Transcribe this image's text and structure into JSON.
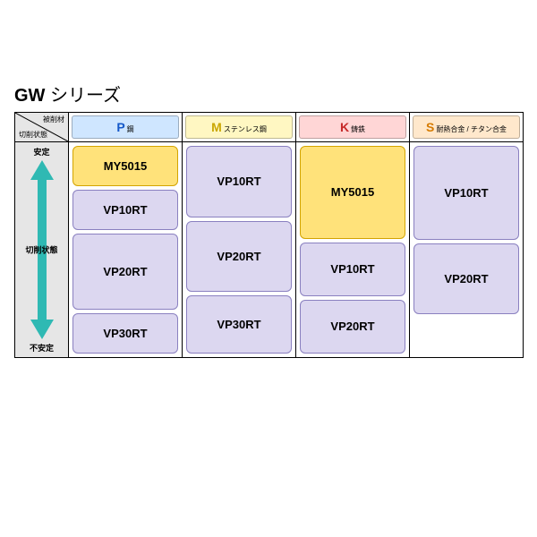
{
  "title_bold": "GW",
  "title_light": " シリーズ",
  "diag_top": "被削材",
  "diag_bottom": "切削状態",
  "axis": {
    "top": "安定",
    "mid": "切削状態",
    "bottom": "不安定",
    "arrow_color": "#2fb9b3"
  },
  "colors": {
    "chip_purple_bg": "#dcd7f0",
    "chip_purple_border": "#8a80c0",
    "chip_yellow_bg": "#ffe27a",
    "chip_yellow_border": "#d4a400",
    "hdr_grey": "#e6e6e6"
  },
  "columns": [
    {
      "letter": "P",
      "sub": "鋼",
      "bg": "#cfe6ff",
      "letter_color": "#1659c9"
    },
    {
      "letter": "M",
      "sub": "ステンレス鋼",
      "bg": "#fff7c2",
      "letter_color": "#caa600"
    },
    {
      "letter": "K",
      "sub": "鋳鉄",
      "bg": "#ffd6d6",
      "letter_color": "#c62828"
    },
    {
      "letter": "S",
      "sub": "耐熱合金 / チタン合金",
      "bg": "#ffe8cc",
      "letter_color": "#d67b00"
    }
  ],
  "cells": [
    [
      {
        "label": "MY5015",
        "grow": 1,
        "color": "yellow"
      },
      {
        "label": "VP10RT",
        "grow": 1,
        "color": "purple"
      },
      {
        "label": "VP20RT",
        "grow": 2.4,
        "color": "purple"
      },
      {
        "label": "VP30RT",
        "grow": 1,
        "color": "purple"
      }
    ],
    [
      {
        "label": "VP10RT",
        "grow": 1.7,
        "color": "purple"
      },
      {
        "label": "VP20RT",
        "grow": 1.7,
        "color": "purple"
      },
      {
        "label": "VP30RT",
        "grow": 1.3,
        "color": "purple"
      }
    ],
    [
      {
        "label": "MY5015",
        "grow": 2,
        "color": "yellow"
      },
      {
        "label": "VP10RT",
        "grow": 1,
        "color": "purple"
      },
      {
        "label": "VP20RT",
        "grow": 1,
        "color": "purple"
      }
    ],
    [
      {
        "label": "VP10RT",
        "grow": 2,
        "color": "purple"
      },
      {
        "label": "VP20RT",
        "grow": 1.4,
        "color": "purple"
      }
    ]
  ],
  "cell_vgap": [
    0,
    0,
    0,
    40
  ]
}
